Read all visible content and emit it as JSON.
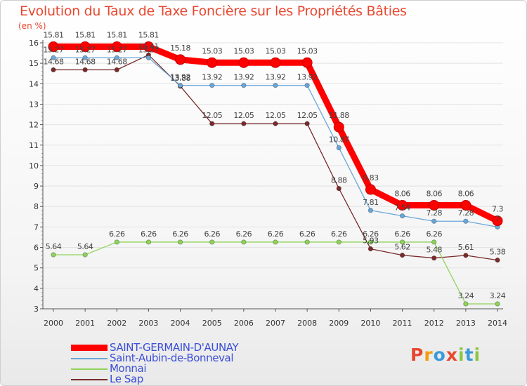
{
  "header": {
    "title": "Evolution du Taux de Taxe Foncière sur les Propriétés Bâties",
    "unit": "(en %)"
  },
  "logo": {
    "text": "Proxiti",
    "colors": [
      "#e8472f",
      "#f39c12",
      "#3a9ad9",
      "#e8472f",
      "#8cc63f",
      "#3a9ad9",
      "#8cc63f"
    ]
  },
  "chart_data": {
    "type": "line",
    "title": "Evolution du Taux de Taxe Foncière sur les Propriétés Bâties",
    "ylabel": "(en %)",
    "xlabel": "",
    "ylim": [
      3,
      16
    ],
    "yticks": [
      3,
      4,
      5,
      6,
      7,
      8,
      9,
      10,
      11,
      12,
      13,
      14,
      15,
      16
    ],
    "categories": [
      "2000",
      "2001",
      "2002",
      "2003",
      "2004",
      "2005",
      "2006",
      "2007",
      "2008",
      "2009",
      "2010",
      "2011",
      "2012",
      "2013",
      "2014"
    ],
    "series": [
      {
        "name": "Le Sap",
        "color": "#7a2a2a",
        "values": [
          14.68,
          14.68,
          14.68,
          15.41,
          13.88,
          12.05,
          12.05,
          12.05,
          12.05,
          8.88,
          5.93,
          5.62,
          5.48,
          5.61,
          5.38
        ],
        "labels": [
          "14.68",
          "14.68",
          "14.68",
          "15.41",
          "13.88",
          "12.05",
          "12.05",
          "12.05",
          "12.05",
          "8.88",
          "5.93",
          "5.62",
          "5.48",
          "5.61",
          "5.38"
        ]
      },
      {
        "name": "Monnai",
        "color": "#8fd45a",
        "values": [
          5.64,
          5.64,
          6.26,
          6.26,
          6.26,
          6.26,
          6.26,
          6.26,
          6.26,
          6.26,
          6.26,
          6.26,
          6.26,
          3.24,
          3.24
        ],
        "labels": [
          "5.64",
          "5.64",
          "6.26",
          "6.26",
          "6.26",
          "6.26",
          "6.26",
          "6.26",
          "6.26",
          "6.26",
          "6.26",
          "6.26",
          "6.26",
          "3.24",
          "3.24"
        ]
      },
      {
        "name": "Saint-Aubin-de-Bonneval",
        "color": "#6aa7d8",
        "values": [
          15.27,
          15.27,
          15.27,
          15.27,
          13.92,
          13.92,
          13.92,
          13.92,
          13.92,
          10.87,
          7.81,
          7.54,
          7.28,
          7.28,
          7.0
        ],
        "labels": [
          "15.27",
          "15.27",
          "15.27",
          "15.27",
          "13.92",
          "13.92",
          "13.92",
          "13.92",
          "13.92",
          "10.87",
          "7.81",
          "7.54",
          "7.28",
          "7.28",
          "7"
        ]
      },
      {
        "name": "SAINT-GERMAIN-D'AUNAY",
        "color": "#ff0000",
        "values": [
          15.81,
          15.81,
          15.81,
          15.81,
          15.18,
          15.03,
          15.03,
          15.03,
          15.03,
          11.88,
          8.83,
          8.06,
          8.06,
          8.06,
          7.3
        ],
        "labels": [
          "15.81",
          "15.81",
          "15.81",
          "15.81",
          "15.18",
          "15.03",
          "15.03",
          "15.03",
          "15.03",
          "11.88",
          "8.83",
          "8.06",
          "8.06",
          "8.06",
          "7.3"
        ]
      }
    ],
    "legend": [
      {
        "name": "SAINT-GERMAIN-D'AUNAY",
        "color": "#ff0000"
      },
      {
        "name": "Saint-Aubin-de-Bonneval",
        "color": "#6aa7d8"
      },
      {
        "name": "Monnai",
        "color": "#8fd45a"
      },
      {
        "name": "Le Sap",
        "color": "#7a2a2a"
      }
    ]
  }
}
